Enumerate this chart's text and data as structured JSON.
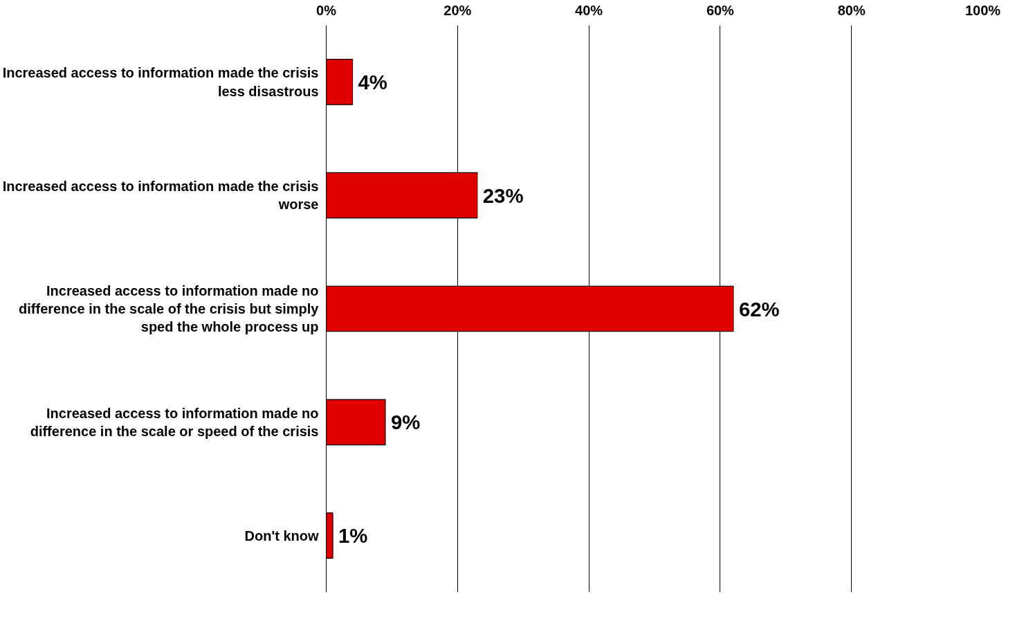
{
  "chart_data": {
    "type": "bar",
    "orientation": "horizontal",
    "categories": [
      "Increased access to information made the crisis less disastrous",
      "Increased access to information made the crisis worse",
      "Increased access to information made no difference in the scale of the crisis but simply sped the whole process up",
      "Increased access to information made no difference in the scale or speed of the crisis",
      "Don't know"
    ],
    "values": [
      4,
      23,
      62,
      9,
      1
    ],
    "value_labels": [
      "4%",
      "23%",
      "62%",
      "9%",
      "1%"
    ],
    "color": "#e00000",
    "xlim": [
      0,
      100
    ],
    "xticks": [
      {
        "value": 0,
        "label": "0%"
      },
      {
        "value": 20,
        "label": "20%"
      },
      {
        "value": 40,
        "label": "40%"
      },
      {
        "value": 60,
        "label": "60%"
      },
      {
        "value": 80,
        "label": "80%"
      },
      {
        "value": 100,
        "label": "100%"
      }
    ],
    "grid": "x"
  }
}
